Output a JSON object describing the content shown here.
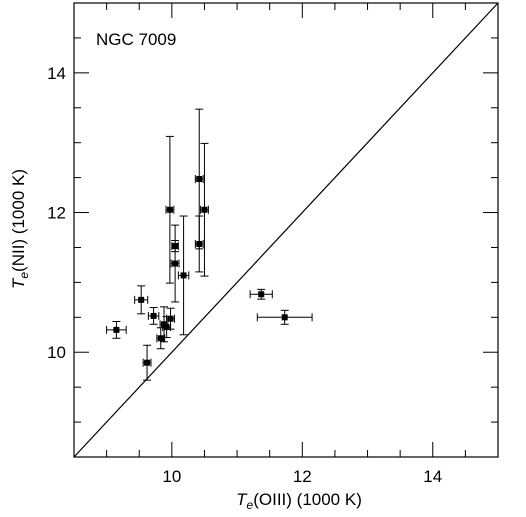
{
  "chart_data": {
    "type": "scatter",
    "annotation": "NGC 7009",
    "xlabel": {
      "symbol": "T",
      "subscript": "e",
      "rest": "(OIII) (1000 K)"
    },
    "ylabel": {
      "symbol": "T",
      "subscript": "e",
      "rest": "(NII) (1000 K)"
    },
    "xlim": [
      8.5,
      15.0
    ],
    "ylim": [
      8.5,
      15.0
    ],
    "x_major_ticks": [
      10,
      12,
      14
    ],
    "y_major_ticks": [
      10,
      12,
      14
    ],
    "x_minor_step": 0.5,
    "y_minor_step": 0.5,
    "x_tick_labels": [
      "10",
      "12",
      "14"
    ],
    "y_tick_labels": [
      "10",
      "12",
      "14"
    ],
    "reference_line": {
      "description": "equality",
      "from": [
        8.5,
        8.5
      ],
      "to": [
        15.0,
        15.0
      ]
    },
    "grid": false,
    "legend": "none",
    "points": [
      {
        "x": 9.15,
        "y": 10.32,
        "xerr": 0.15,
        "yerr": 0.12
      },
      {
        "x": 9.53,
        "y": 10.75,
        "xerr": 0.1,
        "yerr": 0.2
      },
      {
        "x": 9.62,
        "y": 9.85,
        "xerr": 0.06,
        "yerr": 0.25
      },
      {
        "x": 9.72,
        "y": 10.52,
        "xerr": 0.08,
        "yerr": 0.12
      },
      {
        "x": 9.83,
        "y": 10.2,
        "xerr": 0.06,
        "yerr": 0.15
      },
      {
        "x": 9.88,
        "y": 10.4,
        "xerr": 0.06,
        "yerr": 0.25
      },
      {
        "x": 9.92,
        "y": 10.36,
        "xerr": 0.06,
        "yerr": 0.15
      },
      {
        "x": 9.98,
        "y": 10.48,
        "xerr": 0.06,
        "yerr": 0.15
      },
      {
        "x": 9.97,
        "y": 12.04,
        "xerr": 0.06,
        "yerr": 1.05
      },
      {
        "x": 10.05,
        "y": 11.52,
        "xerr": 0.05,
        "yerr": 0.08
      },
      {
        "x": 10.05,
        "y": 11.27,
        "xerr": 0.06,
        "yerr": 0.55
      },
      {
        "x": 10.18,
        "y": 11.1,
        "xerr": 0.08,
        "yerr": 0.85
      },
      {
        "x": 10.42,
        "y": 12.48,
        "xerr": 0.06,
        "yerr": 1.0
      },
      {
        "x": 10.42,
        "y": 11.55,
        "xerr": 0.06,
        "yerr": 0.4
      },
      {
        "x": 10.5,
        "y": 12.04,
        "xerr": 0.06,
        "yerr": 0.95
      },
      {
        "x": 11.37,
        "y": 10.83,
        "xerr": 0.17,
        "yerr": 0.07
      },
      {
        "x": 11.73,
        "y": 10.5,
        "xerr": 0.42,
        "yerr": 0.1
      }
    ]
  }
}
